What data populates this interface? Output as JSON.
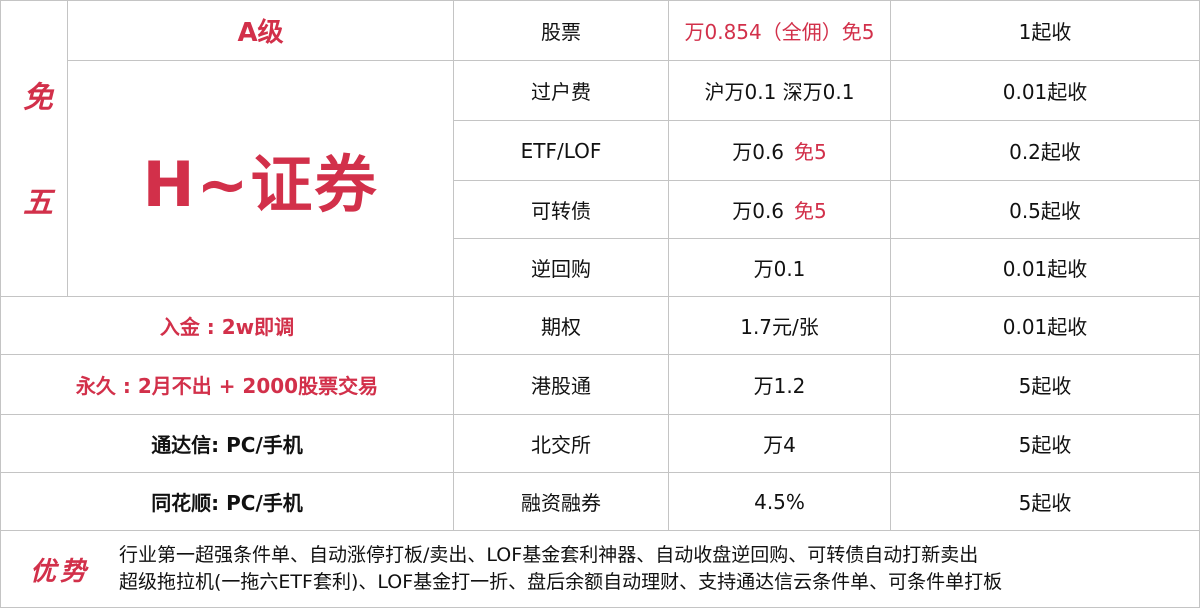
{
  "badge": "免五",
  "grade": "A级",
  "broker": "H~证券",
  "notes": [
    {
      "text": "入金 : 2w即调",
      "color": "#d2304a"
    },
    {
      "text": "永久 : 2月不出 + 2000股票交易",
      "color": "#d2304a"
    },
    {
      "text": "通达信: PC/手机",
      "color": "#111111"
    },
    {
      "text": "同花顺: PC/手机",
      "color": "#111111"
    }
  ],
  "rows": [
    {
      "item": "股票",
      "fee": [
        {
          "text": "万0.854（全佣）免5",
          "color": "#d2304a"
        }
      ],
      "min": "1起收"
    },
    {
      "item": "过户费",
      "fee": [
        {
          "text": "沪万0.1 深万0.1",
          "color": "#111111"
        }
      ],
      "min": "0.01起收"
    },
    {
      "item": "ETF/LOF",
      "fee": [
        {
          "text": "万0.6",
          "color": "#111111"
        },
        {
          "text": "免5",
          "color": "#d2304a"
        }
      ],
      "min": "0.2起收"
    },
    {
      "item": "可转债",
      "fee": [
        {
          "text": "万0.6",
          "color": "#111111"
        },
        {
          "text": "免5",
          "color": "#d2304a"
        }
      ],
      "min": "0.5起收"
    },
    {
      "item": "逆回购",
      "fee": [
        {
          "text": "万0.1",
          "color": "#111111"
        }
      ],
      "min": "0.01起收"
    },
    {
      "item": "期权",
      "fee": [
        {
          "text": "1.7元/张",
          "color": "#111111"
        }
      ],
      "min": "0.01起收"
    },
    {
      "item": "港股通",
      "fee": [
        {
          "text": "万1.2",
          "color": "#111111"
        }
      ],
      "min": "5起收"
    },
    {
      "item": "北交所",
      "fee": [
        {
          "text": "万4",
          "color": "#111111"
        }
      ],
      "min": "5起收"
    },
    {
      "item": "融资融券",
      "fee": [
        {
          "text": "4.5%",
          "color": "#111111"
        }
      ],
      "min": "5起收"
    }
  ],
  "footer": {
    "label": "优势",
    "lines": [
      "行业第一超强条件单、自动涨停打板/卖出、LOF基金套利神器、自动收盘逆回购、可转债自动打新卖出",
      "超级拖拉机(一拖六ETF套利)、LOF基金打一折、盘后余额自动理财、支持通达信云条件单、可条件单打板"
    ]
  }
}
